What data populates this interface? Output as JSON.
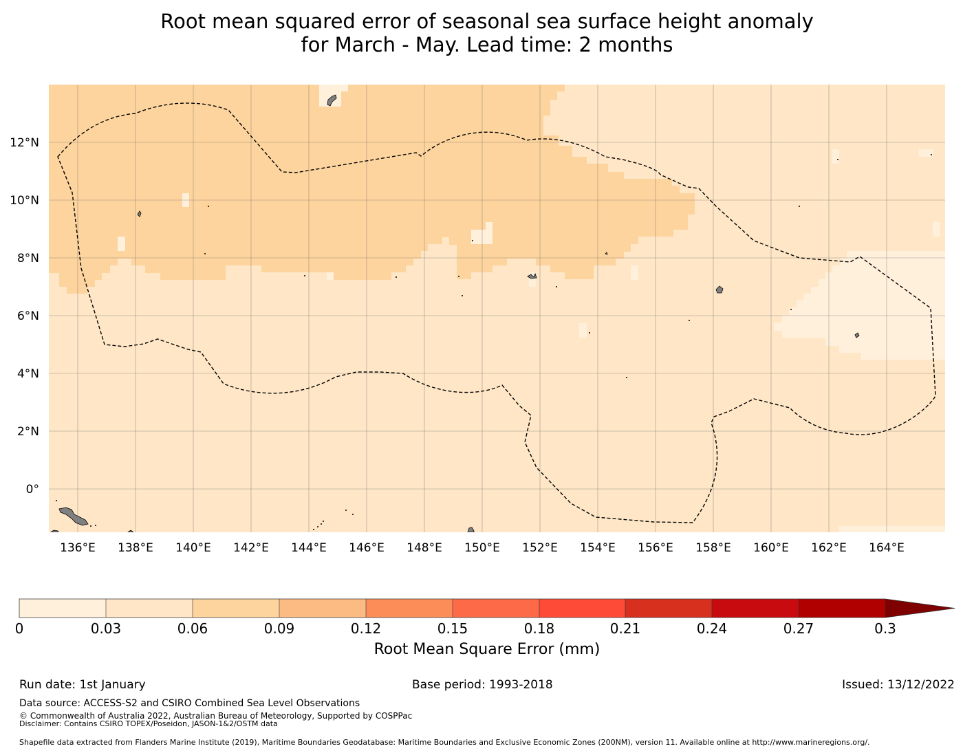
{
  "title": {
    "line1": "Root mean squared error of seasonal sea surface height anomaly",
    "line2": "for March - May. Lead time: 2 months"
  },
  "map": {
    "lon_labels": [
      "136°E",
      "138°E",
      "140°E",
      "142°E",
      "144°E",
      "146°E",
      "148°E",
      "150°E",
      "152°E",
      "154°E",
      "156°E",
      "158°E",
      "160°E",
      "162°E",
      "164°E"
    ],
    "lat_labels": [
      "12°N",
      "10°N",
      "8°N",
      "6°N",
      "4°N",
      "2°N",
      "0°"
    ],
    "colors": {
      "bin_0_0.03": "#fff0dc",
      "bin_0.03_0.06": "#fee6c6",
      "bin_0.06_0.09": "#fdd49e",
      "land": "#808080",
      "boundary": "#000000"
    }
  },
  "colorbar": {
    "ticks": [
      "0",
      "0.03",
      "0.06",
      "0.09",
      "0.12",
      "0.15",
      "0.18",
      "0.21",
      "0.24",
      "0.27",
      "0.3"
    ],
    "colors": [
      "#fff0dc",
      "#fee6c6",
      "#fdd49e",
      "#fdbb84",
      "#fc8d59",
      "#fd6a47",
      "#fe4b38",
      "#d7301f",
      "#c70b0f",
      "#b00000",
      "#7f0000"
    ],
    "label": "Root Mean Square Error (mm)"
  },
  "footer": {
    "run_date": "Run date: 1st January",
    "base_period": "Base period: 1993-2018",
    "issued": "Issued: 13/12/2022",
    "data_source": "Data source: ACCESS-S2 and CSIRO Combined Sea Level Observations",
    "copyright": "© Commonwealth of Australia 2022, Australian Bureau of Meteorology, Supported by COSPPac",
    "disclaimer": "Disclaimer: Contains CSIRO TOPEX/Poseidon, JASON-1&2/OSTM data",
    "shapefile": "Shapefile data extracted from Flanders Marine Institute (2019), Maritime Boundaries Geodatabase: Maritime Boundaries and Exclusive Economic Zones (200NM), version 11. Available online at http://www.marineregions.org/."
  }
}
